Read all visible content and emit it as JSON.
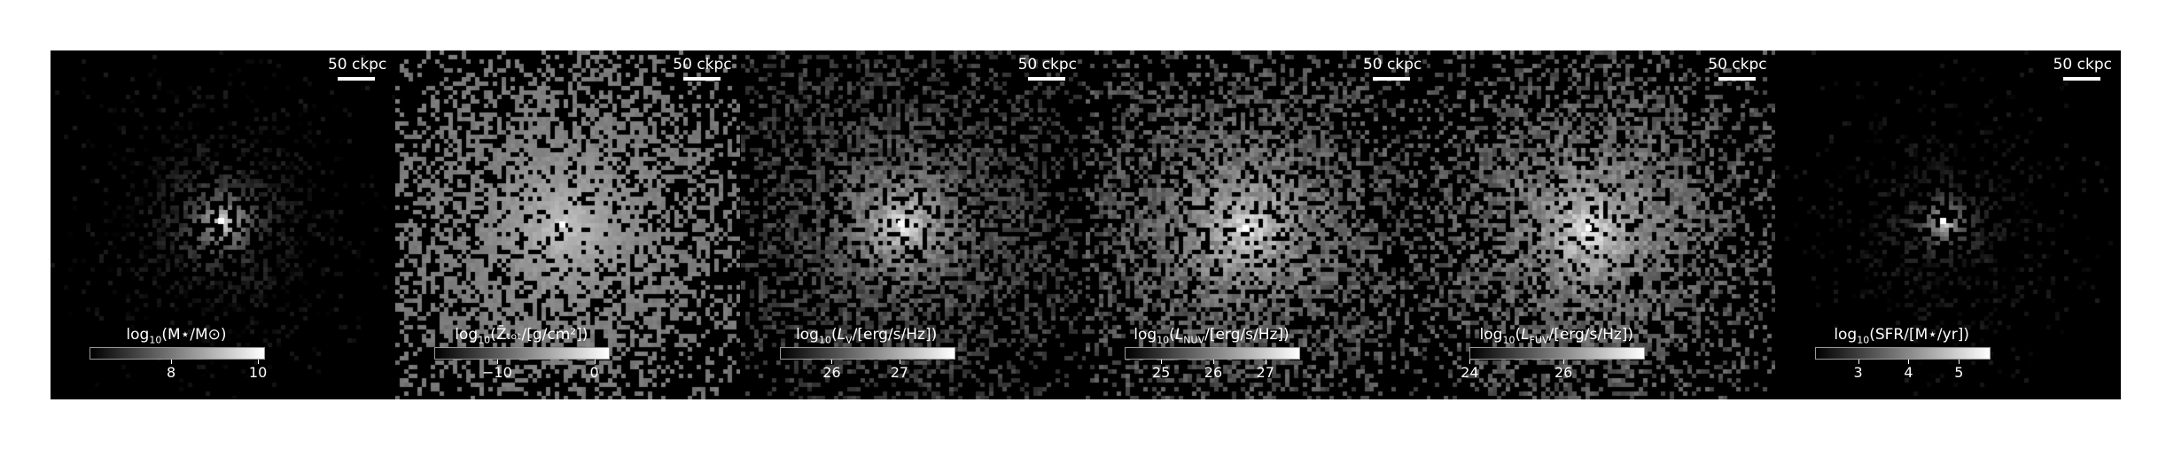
{
  "scale_bar_label": "50 ckpc",
  "panels": [
    {
      "id": "stellar-mass",
      "cbar": "log10(M⋆/M⊙)",
      "ticks": [
        {
          "label": "8",
          "frac": 0.47
        },
        {
          "label": "10",
          "frac": 0.97
        }
      ]
    },
    {
      "id": "metallicity",
      "cbar": "log10(Z̄ₜₒₜ/[g/cm²])",
      "ticks": [
        {
          "label": "−10",
          "frac": 0.36
        },
        {
          "label": "0",
          "frac": 0.92
        }
      ]
    },
    {
      "id": "v-luminosity",
      "cbar": "log10(L_V/[erg/s/Hz])",
      "ticks": [
        {
          "label": "26",
          "frac": 0.3
        },
        {
          "label": "27",
          "frac": 0.69
        }
      ]
    },
    {
      "id": "nuv-luminosity",
      "cbar": "log10(L_NUV/[erg/s/Hz])",
      "ticks": [
        {
          "label": "25",
          "frac": 0.21
        },
        {
          "label": "26",
          "frac": 0.51
        },
        {
          "label": "27",
          "frac": 0.81
        }
      ]
    },
    {
      "id": "fuv-luminosity",
      "cbar": "log10(L_FUV/[erg/s/Hz])",
      "ticks": [
        {
          "label": "24",
          "frac": 0.0
        },
        {
          "label": "26",
          "frac": 0.54
        }
      ]
    },
    {
      "id": "sfr",
      "cbar": "log10(SFR/[M⋆/yr])",
      "ticks": [
        {
          "label": "3",
          "frac": 0.25
        },
        {
          "label": "4",
          "frac": 0.54
        },
        {
          "label": "5",
          "frac": 0.83
        }
      ]
    }
  ]
}
